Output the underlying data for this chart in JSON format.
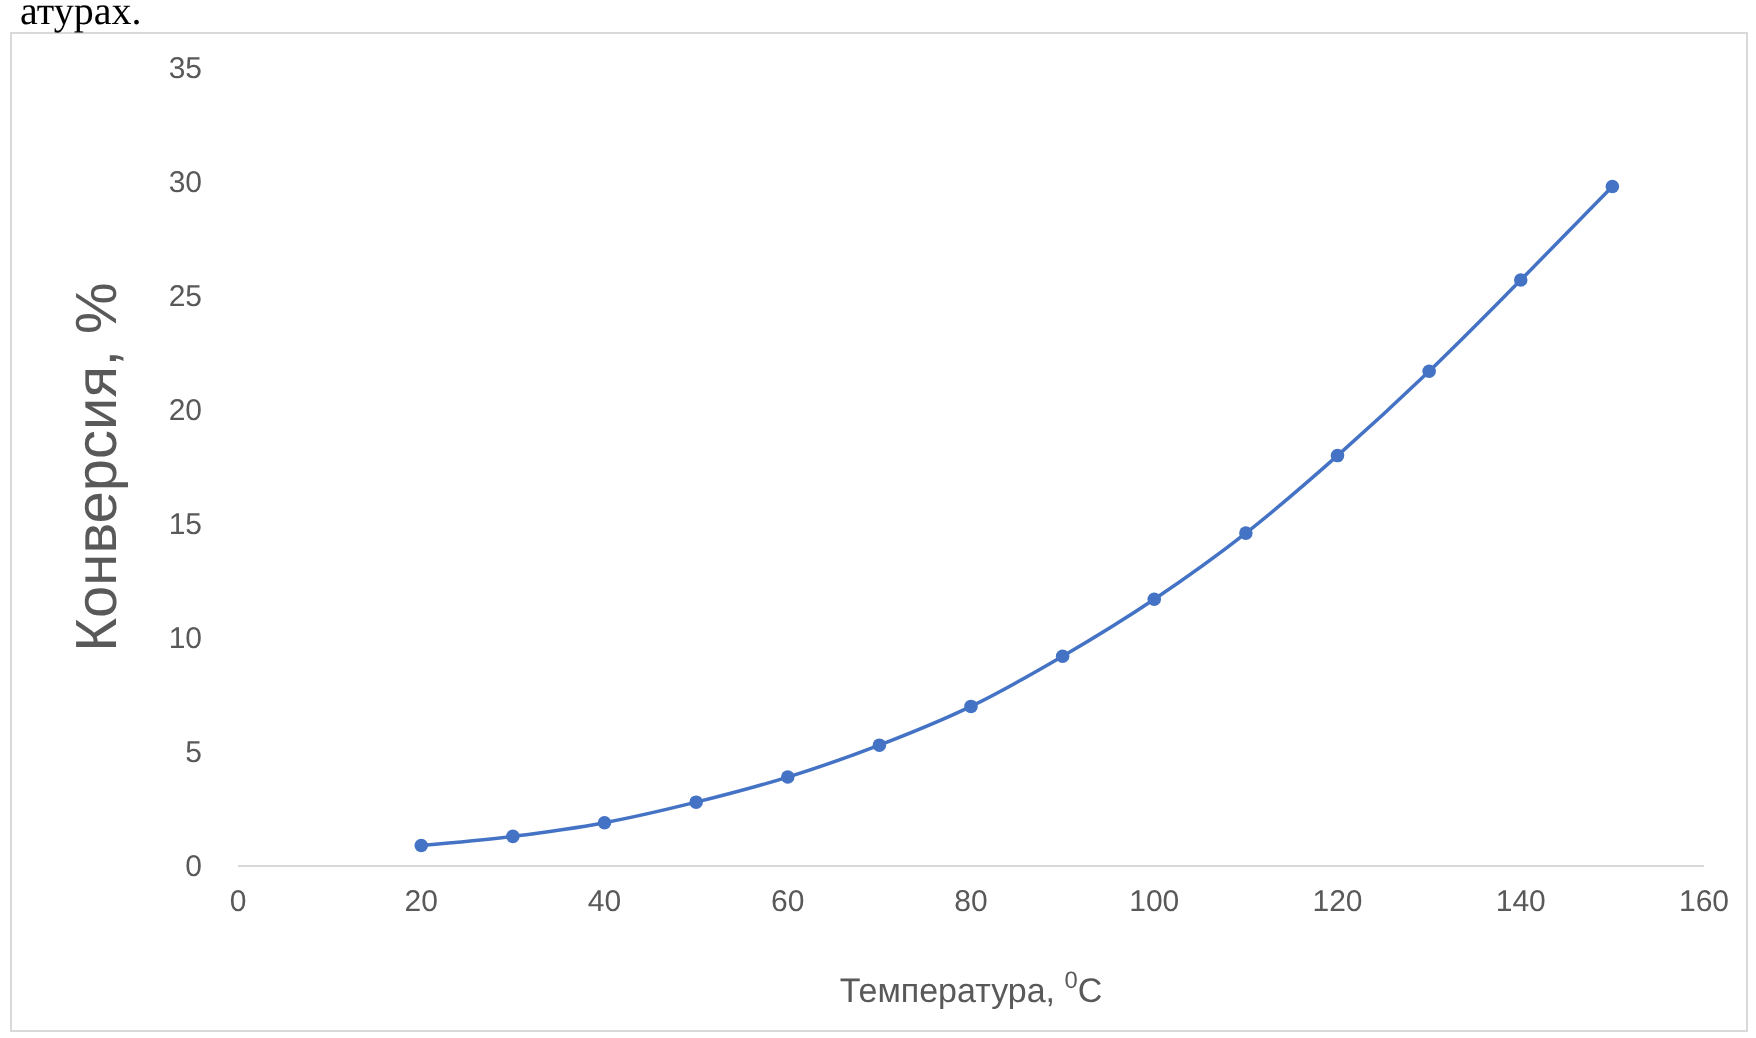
{
  "chart_data": {
    "type": "line",
    "xlabel": "Температура, $^{0}$C",
    "ylabel": "Конверсия, %",
    "annotations": [
      "атурах."
    ],
    "x": [
      20,
      30,
      40,
      50,
      60,
      70,
      80,
      90,
      100,
      110,
      120,
      130,
      140,
      150
    ],
    "series": [
      {
        "color": "#4472c4",
        "values": [
          0.9,
          1.3,
          1.9,
          2.8,
          3.9,
          5.3,
          7.0,
          9.2,
          11.7,
          14.6,
          18.0,
          21.7,
          25.7,
          29.8
        ]
      }
    ],
    "xlim": [
      0,
      160
    ],
    "xticks": [
      0,
      20,
      40,
      60,
      80,
      100,
      120,
      140,
      160
    ],
    "ylim": [
      0,
      35
    ],
    "yticks": [
      0,
      5,
      10,
      15,
      20,
      25,
      30,
      35
    ],
    "grid": false,
    "marker": "circle",
    "line_style": "solid"
  }
}
